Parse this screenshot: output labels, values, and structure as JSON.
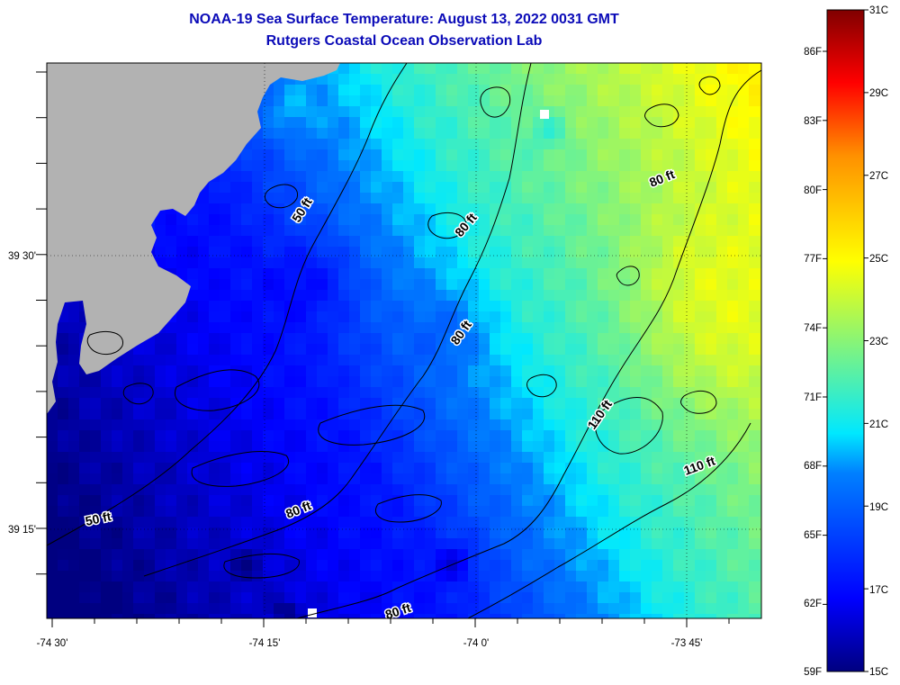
{
  "title": {
    "line1": "NOAA-19 Sea Surface Temperature:  August 13, 2022 0031 GMT",
    "line2": "Rutgers Coastal Ocean Observation Lab"
  },
  "map": {
    "lat_labels": [
      {
        "text": "39 30'",
        "lat": 39.5
      },
      {
        "text": "39 15'",
        "lat": 39.25
      }
    ],
    "lon_labels": [
      {
        "text": "-74 30'",
        "lon": -74.5
      },
      {
        "text": "-74 15'",
        "lon": -74.25
      },
      {
        "text": "-74 0'",
        "lon": -74.0
      },
      {
        "text": "-73 45'",
        "lon": -73.75
      }
    ],
    "contour_labels": [
      {
        "text": "50 ft"
      },
      {
        "text": "50 ft"
      },
      {
        "text": "80 ft"
      },
      {
        "text": "80 ft"
      },
      {
        "text": "80 ft"
      },
      {
        "text": "80 ft"
      },
      {
        "text": "80 ft"
      },
      {
        "text": "110 ft"
      },
      {
        "text": "110 ft"
      }
    ],
    "colors": {
      "land": "#b2b2b2",
      "missing": "#ffffff",
      "contour": "#000000"
    }
  },
  "colorbar": {
    "celsius": [
      "31C",
      "29C",
      "27C",
      "25C",
      "23C",
      "21C",
      "19C",
      "17C",
      "15C"
    ],
    "fahrenheit": [
      "86F",
      "83F",
      "80F",
      "77F",
      "74F",
      "71F",
      "68F",
      "65F",
      "62F",
      "59F"
    ],
    "range_c": [
      15,
      31
    ]
  }
}
